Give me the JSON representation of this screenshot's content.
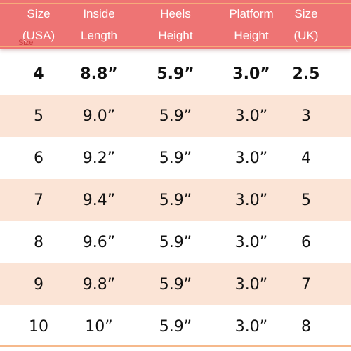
{
  "table": {
    "headers": [
      {
        "line1": "Size",
        "line2": "(USA)"
      },
      {
        "line1": "Inside",
        "line2": "Length"
      },
      {
        "line1": "Heels",
        "line2": "Height"
      },
      {
        "line1": "Platform",
        "line2": "Height"
      },
      {
        "line1": "Size",
        "line2": "(UK)"
      }
    ],
    "stray_label": "Size",
    "rows": [
      [
        "4",
        "8.8”",
        "5.9”",
        "3.0”",
        "2.5"
      ],
      [
        "5",
        "9.0”",
        "5.9”",
        "3.0”",
        "3"
      ],
      [
        "6",
        "9.2”",
        "5.9”",
        "3.0”",
        "4"
      ],
      [
        "7",
        "9.4”",
        "5.9”",
        "3.0”",
        "5"
      ],
      [
        "8",
        "9.6”",
        "5.9”",
        "3.0”",
        "6"
      ],
      [
        "9",
        "9.8”",
        "5.9”",
        "3.0”",
        "7"
      ],
      [
        "10",
        "10”",
        "5.9”",
        "3.0”",
        "8"
      ]
    ]
  },
  "colors": {
    "header": "#ee7474",
    "alt_row": "#fbe4d6",
    "rule": "#f6b98c"
  }
}
